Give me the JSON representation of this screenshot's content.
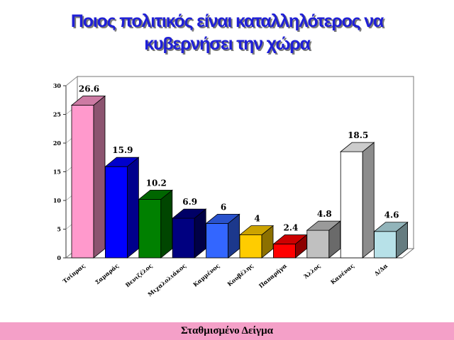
{
  "slide": {
    "title_line1": "Ποιος πολιτικός είναι καταλληλότερος  να",
    "title_line2": "κυβερνήσει την χώρα",
    "footer": "Σταθμισμένο Δείγμα"
  },
  "chart_data": {
    "type": "bar",
    "categories": [
      "Τσίπρας",
      "Σαμαράς",
      "Βενιζέλος",
      "Μιχαλολιάκος",
      "Καμμένος",
      "Κουβέλης",
      "Παπαρήγα",
      "Άλλος",
      "Κανένας",
      "Δ/Δα"
    ],
    "values": [
      26.6,
      15.9,
      10.2,
      6.9,
      6,
      4,
      2.4,
      4.8,
      18.5,
      4.6
    ],
    "value_labels": [
      "26.6",
      "15.9",
      "10.2",
      "6.9",
      "6",
      "4",
      "2.4",
      "4.8",
      "18.5",
      "4.6"
    ],
    "colors": [
      "#ff99cc",
      "#0000ff",
      "#008000",
      "#000080",
      "#3366ff",
      "#ffcc00",
      "#ff0000",
      "#c0c0c0",
      "#ffffff",
      "#b7e1e8"
    ],
    "ylim": [
      0,
      30
    ],
    "yticks": [
      "0",
      "5",
      "10",
      "15",
      "20",
      "25",
      "30"
    ],
    "grid": false,
    "legend": "none",
    "three_d": true
  }
}
